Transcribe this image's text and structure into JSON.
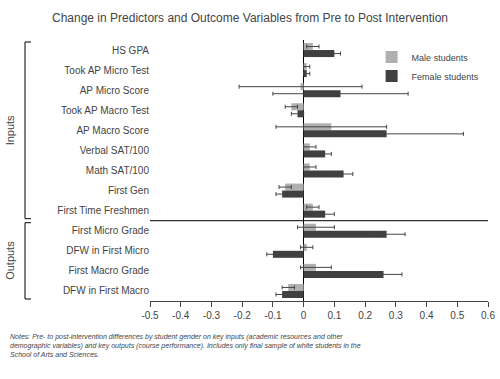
{
  "chart_data": {
    "type": "bar",
    "orientation": "horizontal",
    "title": "Change in Predictors and Outcome Variables from Pre to Post Intervention",
    "categories": [
      "HS GPA",
      "Took AP Micro Test",
      "AP Micro Score",
      "Took AP Macro Test",
      "AP Macro Score",
      "Verbal SAT/100",
      "Math SAT/100",
      "First Gen",
      "First Time Freshmen",
      "First Micro Grade",
      "DFW in First Micro",
      "First Macro Grade",
      "DFW in First Macro"
    ],
    "series": [
      {
        "name": "Male students",
        "color": "#b0b0b0",
        "values": [
          0.03,
          0.01,
          -0.01,
          -0.04,
          0.09,
          0.02,
          0.02,
          -0.06,
          0.03,
          0.04,
          0.01,
          0.04,
          -0.05
        ],
        "errors": [
          0.02,
          0.01,
          0.2,
          0.02,
          0.18,
          0.02,
          0.02,
          0.02,
          0.02,
          0.06,
          0.02,
          0.05,
          0.02
        ]
      },
      {
        "name": "Female students",
        "color": "#404040",
        "values": [
          0.1,
          0.01,
          0.12,
          -0.02,
          0.27,
          0.07,
          0.13,
          -0.07,
          0.07,
          0.27,
          -0.1,
          0.26,
          -0.07
        ],
        "errors": [
          0.02,
          0.01,
          0.22,
          0.02,
          0.25,
          0.02,
          0.03,
          0.02,
          0.03,
          0.06,
          0.02,
          0.06,
          0.02
        ]
      }
    ],
    "xlim": [
      -0.5,
      0.6
    ],
    "xticks": [
      -0.5,
      -0.4,
      -0.3,
      -0.2,
      -0.1,
      0,
      0.1,
      0.2,
      0.3,
      0.4,
      0.5,
      0.6
    ],
    "annotations": [
      "Inputs",
      "Outputs",
      "Notes: Pre- to post-intervention differences by student gender on key inputs (academic resources and other demographic variables) and key outputs\n(course performance). Includes only final sample of white students in the School of Arts and Sciences."
    ],
    "legend": "upper right",
    "grid": false
  }
}
